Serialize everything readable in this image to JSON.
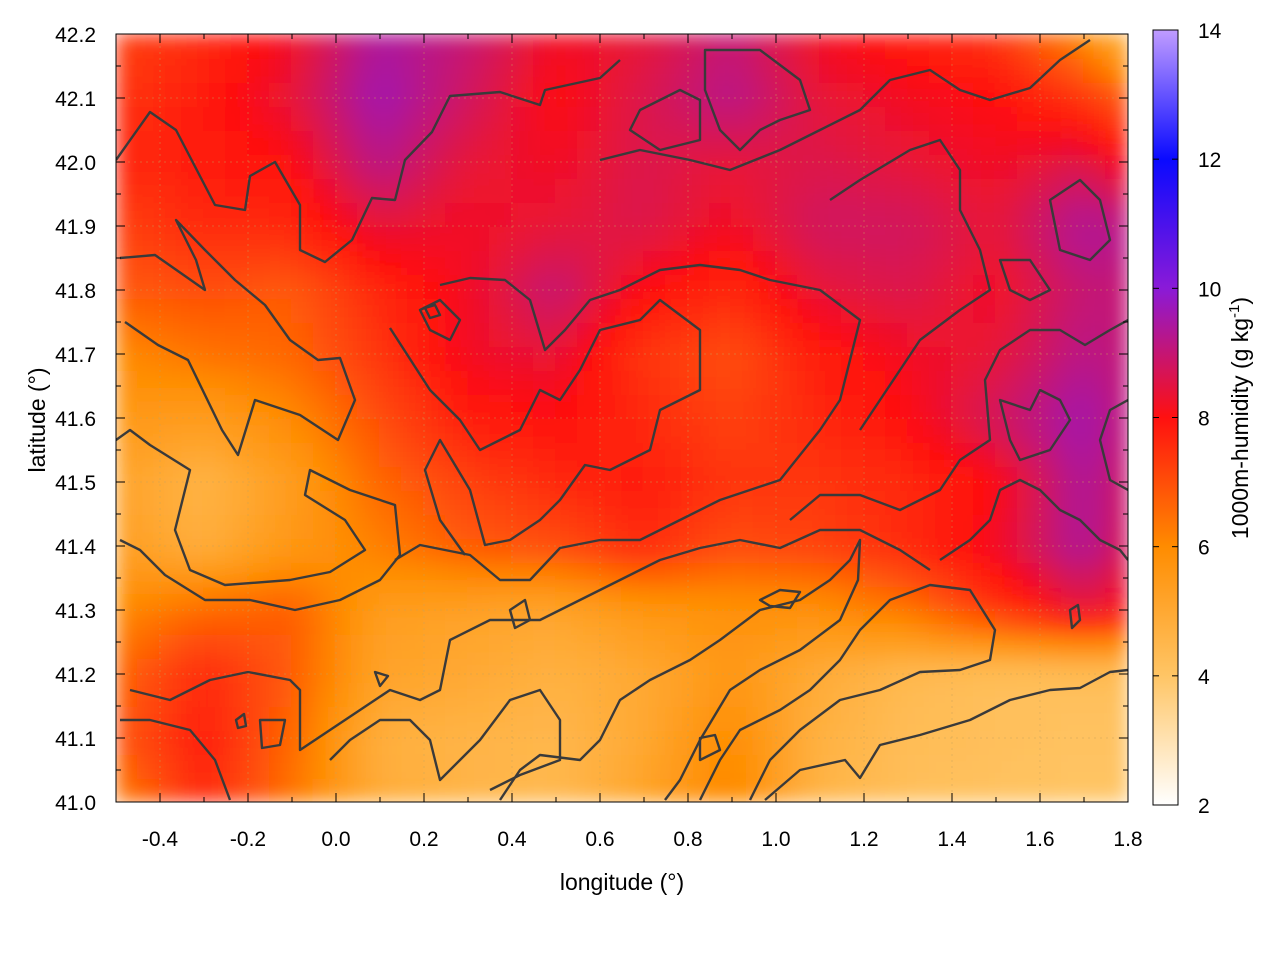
{
  "chart_data": {
    "type": "heatmap",
    "xlabel": "longitude (°)",
    "ylabel": "latitude (°)",
    "colorbar_label": "1000m-humidity (g kg⁻¹)",
    "colorbar_label_parts": {
      "main": "1000m-humidity (g kg",
      "sup": "-1",
      "end": ")"
    },
    "xlim": [
      -0.5,
      1.8
    ],
    "ylim": [
      41.0,
      42.2
    ],
    "x_ticks": [
      -0.4,
      -0.2,
      0.0,
      0.2,
      0.4,
      0.6,
      0.8,
      1.0,
      1.2,
      1.4,
      1.6,
      1.8
    ],
    "x_tick_labels": [
      "-0.4",
      "-0.2",
      "0.0",
      "0.2",
      "0.4",
      "0.6",
      "0.8",
      "1.0",
      "1.2",
      "1.4",
      "1.6",
      "1.8"
    ],
    "y_ticks": [
      41.0,
      41.1,
      41.2,
      41.3,
      41.4,
      41.5,
      41.6,
      41.7,
      41.8,
      41.9,
      42.0,
      42.1,
      42.2
    ],
    "y_tick_labels": [
      "41.0",
      "41.1",
      "41.2",
      "41.3",
      "41.4",
      "41.5",
      "41.6",
      "41.7",
      "41.8",
      "41.9",
      "42.0",
      "42.1",
      "42.2"
    ],
    "colorbar_range": [
      2,
      14
    ],
    "colorbar_ticks": [
      2,
      4,
      6,
      8,
      10,
      12,
      14
    ],
    "colorbar_tick_labels": [
      "2",
      "4",
      "6",
      "8",
      "10",
      "12",
      "14"
    ],
    "colormap": [
      {
        "value": 2,
        "color": "#ffffff"
      },
      {
        "value": 4,
        "color": "#ffc565"
      },
      {
        "value": 6,
        "color": "#ff8c00"
      },
      {
        "value": 8,
        "color": "#ff1010"
      },
      {
        "value": 10,
        "color": "#8a1ad8"
      },
      {
        "value": 12,
        "color": "#0a0aff"
      },
      {
        "value": 14,
        "color": "#c09cff"
      }
    ],
    "grid": true,
    "contour_lines": true,
    "field_grid": {
      "lon": [
        -0.5,
        -0.3,
        -0.1,
        0.1,
        0.3,
        0.5,
        0.7,
        0.9,
        1.1,
        1.3,
        1.5,
        1.7,
        1.8
      ],
      "lat": [
        41.0,
        41.1,
        41.2,
        41.3,
        41.4,
        41.5,
        41.6,
        41.7,
        41.8,
        41.9,
        42.0,
        42.1,
        42.2
      ],
      "values": [
        [
          6.2,
          7.6,
          6.4,
          4.9,
          4.6,
          4.4,
          5.2,
          6.2,
          4.6,
          4.2,
          4.1,
          4.0,
          4.0
        ],
        [
          6.8,
          7.8,
          6.6,
          4.8,
          4.6,
          4.5,
          5.0,
          6.0,
          4.7,
          4.3,
          4.2,
          4.1,
          4.1
        ],
        [
          6.6,
          7.6,
          6.8,
          5.2,
          5.0,
          4.7,
          5.0,
          5.6,
          4.9,
          4.4,
          4.2,
          4.2,
          4.2
        ],
        [
          6.0,
          6.6,
          6.8,
          5.4,
          5.2,
          5.1,
          5.6,
          5.8,
          5.8,
          6.4,
          7.4,
          8.4,
          8.0
        ],
        [
          5.4,
          4.8,
          5.6,
          6.2,
          6.8,
          7.0,
          7.6,
          7.0,
          7.2,
          7.6,
          8.2,
          9.4,
          8.6
        ],
        [
          5.2,
          4.6,
          5.4,
          6.6,
          7.2,
          7.6,
          7.8,
          7.4,
          7.4,
          7.6,
          8.0,
          9.4,
          8.8
        ],
        [
          5.6,
          5.4,
          6.0,
          7.0,
          7.8,
          8.0,
          7.6,
          7.2,
          7.6,
          8.0,
          8.8,
          9.6,
          9.0
        ],
        [
          6.0,
          6.4,
          6.6,
          7.4,
          8.2,
          8.4,
          7.4,
          7.0,
          7.8,
          8.2,
          8.4,
          9.2,
          9.0
        ],
        [
          6.8,
          7.0,
          6.8,
          7.6,
          8.2,
          9.0,
          8.0,
          7.6,
          8.4,
          8.6,
          8.2,
          9.0,
          9.0
        ],
        [
          7.2,
          7.6,
          7.6,
          8.4,
          8.2,
          8.4,
          8.6,
          8.2,
          8.8,
          8.8,
          8.4,
          9.4,
          9.2
        ],
        [
          7.6,
          7.8,
          8.0,
          9.2,
          8.4,
          8.2,
          8.6,
          8.4,
          8.6,
          8.4,
          8.2,
          8.6,
          8.0
        ],
        [
          7.4,
          7.8,
          8.4,
          9.6,
          8.8,
          8.0,
          8.6,
          9.2,
          8.4,
          8.2,
          8.0,
          7.4,
          6.8
        ],
        [
          7.2,
          7.6,
          8.2,
          9.4,
          9.0,
          8.2,
          8.4,
          9.0,
          8.2,
          7.8,
          7.4,
          6.0,
          4.6
        ]
      ]
    }
  }
}
